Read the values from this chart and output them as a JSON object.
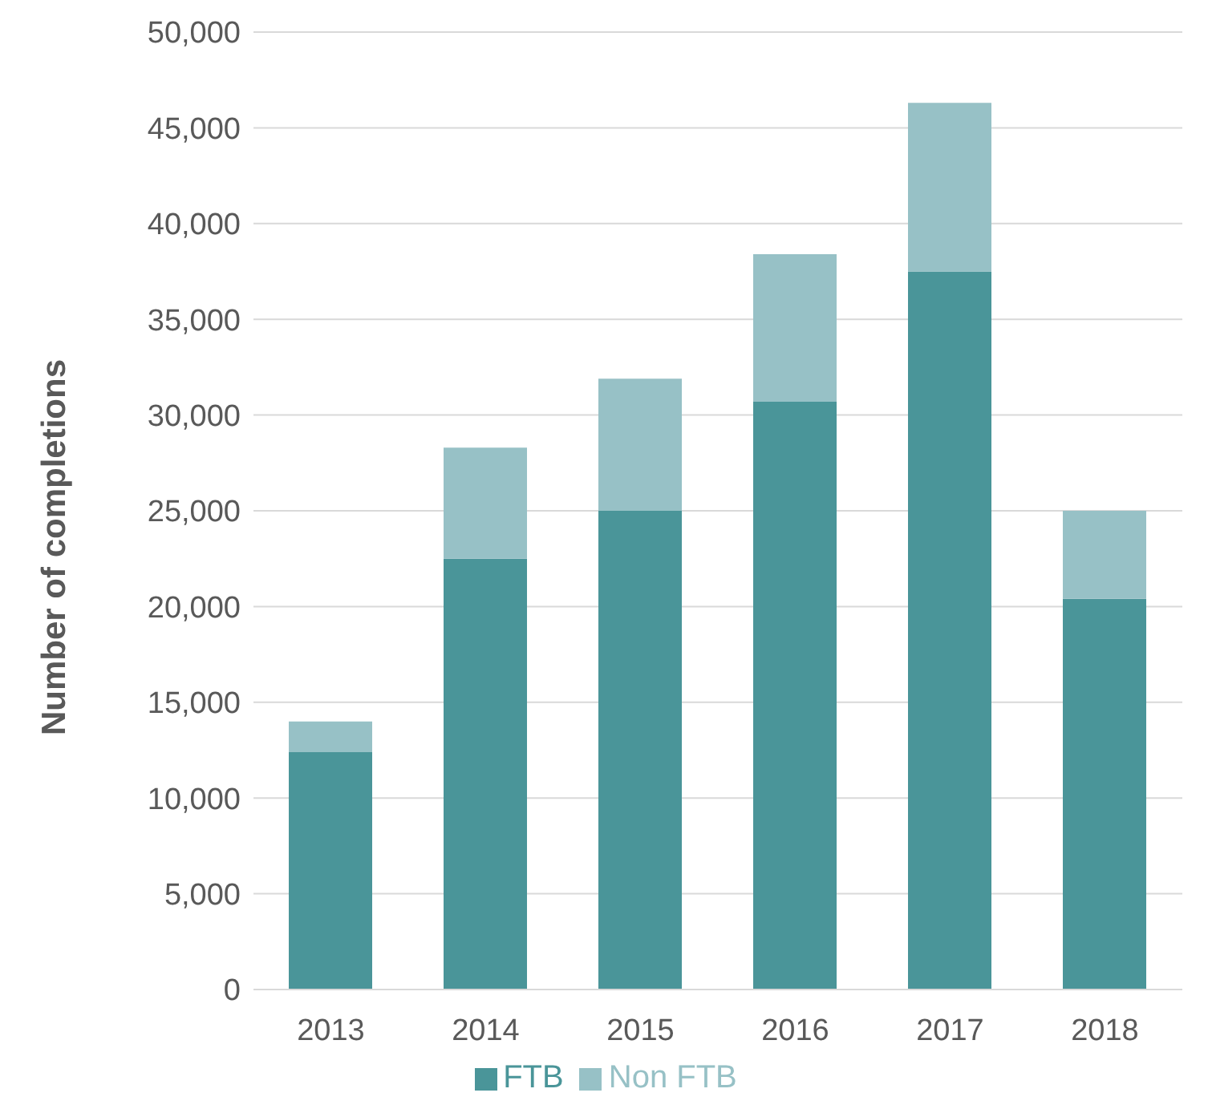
{
  "chart_data": {
    "type": "bar",
    "stacked": true,
    "ylabel": "Number  of completions",
    "categories": [
      "2013",
      "2014",
      "2015",
      "2016",
      "2017",
      "2018"
    ],
    "series": [
      {
        "name": "FTB",
        "color": "#4a9599",
        "values": [
          12400,
          22500,
          25000,
          30700,
          37500,
          20400
        ]
      },
      {
        "name": "Non FTB",
        "color": "#97c1c6",
        "values": [
          1600,
          5800,
          6900,
          7700,
          8800,
          4600
        ]
      }
    ],
    "ylim": [
      0,
      50000
    ],
    "yticks": [
      {
        "value": 0,
        "label": "0"
      },
      {
        "value": 5000,
        "label": "5,000"
      },
      {
        "value": 10000,
        "label": "10,000"
      },
      {
        "value": 15000,
        "label": "15,000"
      },
      {
        "value": 20000,
        "label": "20,000"
      },
      {
        "value": 25000,
        "label": "25,000"
      },
      {
        "value": 30000,
        "label": "30,000"
      },
      {
        "value": 35000,
        "label": "35,000"
      },
      {
        "value": 40000,
        "label": "40,000"
      },
      {
        "value": 45000,
        "label": "45,000"
      },
      {
        "value": 50000,
        "label": "50,000"
      }
    ],
    "grid": "y",
    "legend": "bottom"
  }
}
